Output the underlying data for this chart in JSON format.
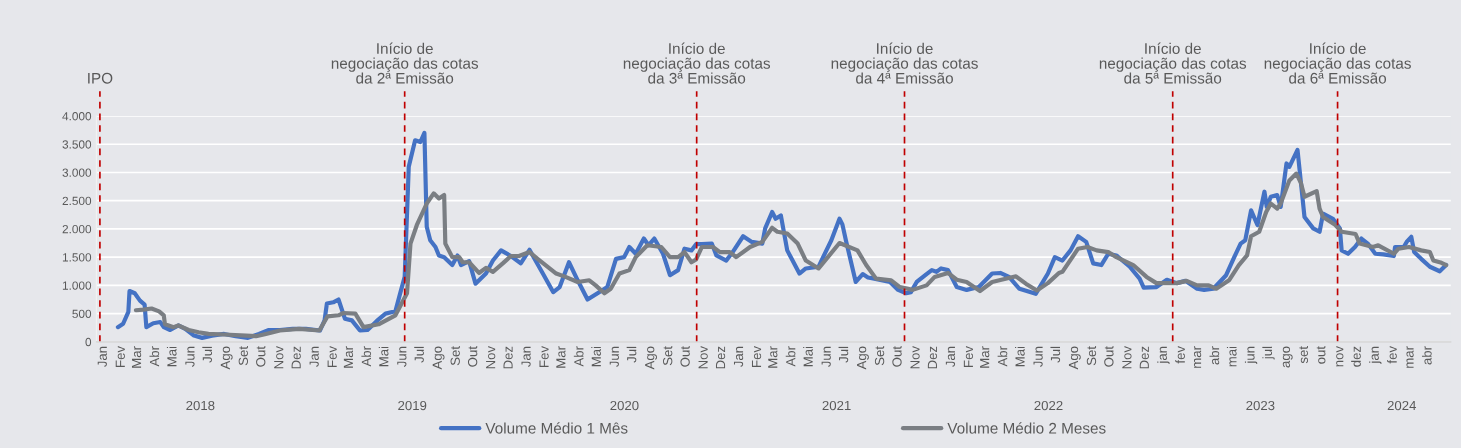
{
  "chart_data": {
    "type": "line",
    "yticks": [
      0,
      {
        "value": 500,
        "label": "500"
      },
      {
        "value": 1000,
        "label": "1.000"
      },
      {
        "value": 1500,
        "label": "1.500"
      },
      {
        "value": 2000,
        "label": "2.000"
      },
      {
        "value": 2500,
        "label": "2.500"
      },
      {
        "value": 3000,
        "label": "3.000"
      },
      {
        "value": 3500,
        "label": "3.500"
      },
      {
        "value": 4000,
        "label": "4.000"
      }
    ],
    "ylim": [
      0,
      4000
    ],
    "xlim": [
      "2017-12-20",
      "2024-05-10"
    ],
    "xticks": [
      {
        "value": "2018-01-01",
        "label": "Jan"
      },
      {
        "value": "2018-02-01",
        "label": "Fev"
      },
      {
        "value": "2018-03-01",
        "label": "Mar"
      },
      {
        "value": "2018-04-01",
        "label": "Abr"
      },
      {
        "value": "2018-05-01",
        "label": "Mai"
      },
      {
        "value": "2018-06-01",
        "label": "Jun"
      },
      {
        "value": "2018-07-01",
        "label": "Jul"
      },
      {
        "value": "2018-08-01",
        "label": "Ago"
      },
      {
        "value": "2018-09-01",
        "label": "Set"
      },
      {
        "value": "2018-10-01",
        "label": "Out"
      },
      {
        "value": "2018-11-01",
        "label": "Nov"
      },
      {
        "value": "2018-12-01",
        "label": "Dez"
      },
      {
        "value": "2019-01-01",
        "label": "Jan"
      },
      {
        "value": "2019-02-01",
        "label": "Fev"
      },
      {
        "value": "2019-03-01",
        "label": "Mar"
      },
      {
        "value": "2019-04-01",
        "label": "Abr"
      },
      {
        "value": "2019-05-01",
        "label": "Mai"
      },
      {
        "value": "2019-06-01",
        "label": "Jun"
      },
      {
        "value": "2019-07-01",
        "label": "Jul"
      },
      {
        "value": "2019-08-01",
        "label": "Ago"
      },
      {
        "value": "2019-09-01",
        "label": "Set"
      },
      {
        "value": "2019-10-01",
        "label": "Out"
      },
      {
        "value": "2019-11-01",
        "label": "Nov"
      },
      {
        "value": "2019-12-01",
        "label": "Dez"
      },
      {
        "value": "2020-01-01",
        "label": "Jan"
      },
      {
        "value": "2020-02-01",
        "label": "Fev"
      },
      {
        "value": "2020-03-01",
        "label": "Mar"
      },
      {
        "value": "2020-04-01",
        "label": "Abr"
      },
      {
        "value": "2020-05-01",
        "label": "Mai"
      },
      {
        "value": "2020-06-01",
        "label": "Jun"
      },
      {
        "value": "2020-07-01",
        "label": "Jul"
      },
      {
        "value": "2020-08-01",
        "label": "Ago"
      },
      {
        "value": "2020-09-01",
        "label": "Set"
      },
      {
        "value": "2020-10-01",
        "label": "Out"
      },
      {
        "value": "2020-11-01",
        "label": "Nov"
      },
      {
        "value": "2020-12-01",
        "label": "Dez"
      },
      {
        "value": "2021-01-01",
        "label": "Jan"
      },
      {
        "value": "2021-02-01",
        "label": "Fev"
      },
      {
        "value": "2021-03-01",
        "label": "Mar"
      },
      {
        "value": "2021-04-01",
        "label": "Abr"
      },
      {
        "value": "2021-05-01",
        "label": "Mai"
      },
      {
        "value": "2021-06-01",
        "label": "Jun"
      },
      {
        "value": "2021-07-01",
        "label": "Jul"
      },
      {
        "value": "2021-08-01",
        "label": "Ago"
      },
      {
        "value": "2021-09-01",
        "label": "Set"
      },
      {
        "value": "2021-10-01",
        "label": "Out"
      },
      {
        "value": "2021-11-01",
        "label": "Nov"
      },
      {
        "value": "2021-12-01",
        "label": "Dez"
      },
      {
        "value": "2022-01-01",
        "label": "Jan"
      },
      {
        "value": "2022-02-01",
        "label": "Fev"
      },
      {
        "value": "2022-03-01",
        "label": "Mar"
      },
      {
        "value": "2022-04-01",
        "label": "Abr"
      },
      {
        "value": "2022-05-01",
        "label": "Mai"
      },
      {
        "value": "2022-06-01",
        "label": "Jun"
      },
      {
        "value": "2022-07-01",
        "label": "Jul"
      },
      {
        "value": "2022-08-01",
        "label": "Ago"
      },
      {
        "value": "2022-09-01",
        "label": "Set"
      },
      {
        "value": "2022-10-01",
        "label": "Out"
      },
      {
        "value": "2022-11-01",
        "label": "Nov"
      },
      {
        "value": "2022-12-01",
        "label": "Dez"
      },
      {
        "value": "2023-01-01",
        "label": "jan"
      },
      {
        "value": "2023-02-01",
        "label": "fev"
      },
      {
        "value": "2023-03-01",
        "label": "mar"
      },
      {
        "value": "2023-04-01",
        "label": "abr"
      },
      {
        "value": "2023-05-01",
        "label": "mai"
      },
      {
        "value": "2023-06-01",
        "label": "jun"
      },
      {
        "value": "2023-07-01",
        "label": "jul"
      },
      {
        "value": "2023-08-01",
        "label": "ago"
      },
      {
        "value": "2023-09-01",
        "label": "set"
      },
      {
        "value": "2023-10-01",
        "label": "out"
      },
      {
        "value": "2023-11-01",
        "label": "nov"
      },
      {
        "value": "2023-12-01",
        "label": "dez"
      },
      {
        "value": "2024-01-01",
        "label": "jan"
      },
      {
        "value": "2024-02-01",
        "label": "fev"
      },
      {
        "value": "2024-03-01",
        "label": "mar"
      },
      {
        "value": "2024-04-01",
        "label": "abr"
      }
    ],
    "annotations": [
      "2018",
      "2019",
      "2020",
      "2021",
      "2022",
      "2023",
      "2024"
    ],
    "grid": "y",
    "legend": "bottom",
    "ref_lines": [
      {
        "axis": "x",
        "value": "2017-12-26",
        "label": "IPO",
        "color": "#c00000",
        "line_style": "dashed"
      },
      {
        "axis": "x",
        "value": "2019-06-04",
        "label": "Início de\nnegociação das cotas\nda 2ª Emissão",
        "color": "#c00000",
        "line_style": "dashed"
      },
      {
        "axis": "x",
        "value": "2020-10-19",
        "label": "Início de\nnegociação das cotas\nda 3ª Emissão",
        "color": "#c00000",
        "line_style": "dashed"
      },
      {
        "axis": "x",
        "value": "2021-10-12",
        "label": "Início de\nnegociação das cotas\nda 4ª Emissão",
        "color": "#c00000",
        "line_style": "dashed"
      },
      {
        "axis": "x",
        "value": "2023-01-17",
        "label": "Início de\nnegociação das cotas\nda 5ª Emissão",
        "color": "#c00000",
        "line_style": "dashed"
      },
      {
        "axis": "x",
        "value": "2023-10-28",
        "label": "Início de\nnegociação das cotas\nda 6ª Emissão",
        "color": "#c00000",
        "line_style": "dashed"
      }
    ],
    "series": [
      {
        "name": "Volume Médio 1 Mês",
        "color": "#4472c4",
        "x": [
          "2018-01-26",
          "2018-02-04",
          "2018-02-13",
          "2018-02-15",
          "2018-02-24",
          "2018-03-05",
          "2018-03-13",
          "2018-03-16",
          "2018-03-28",
          "2018-04-09",
          "2018-04-15",
          "2018-04-26",
          "2018-05-10",
          "2018-05-22",
          "2018-06-06",
          "2018-06-20",
          "2018-07-07",
          "2018-07-28",
          "2018-08-17",
          "2018-09-07",
          "2018-09-26",
          "2018-10-13",
          "2018-11-01",
          "2018-11-23",
          "2018-12-16",
          "2019-01-09",
          "2019-01-17",
          "2019-01-21",
          "2019-02-01",
          "2019-02-10",
          "2019-02-21",
          "2019-03-05",
          "2019-03-19",
          "2019-04-01",
          "2019-04-17",
          "2019-05-02",
          "2019-05-19",
          "2019-05-27",
          "2019-06-04",
          "2019-06-11",
          "2019-06-22",
          "2019-07-01",
          "2019-07-08",
          "2019-07-12",
          "2019-07-18",
          "2019-07-27",
          "2019-08-02",
          "2019-08-11",
          "2019-08-25",
          "2019-09-03",
          "2019-09-09",
          "2019-09-23",
          "2019-10-04",
          "2019-10-22",
          "2019-11-03",
          "2019-11-17",
          "2019-12-04",
          "2019-12-21",
          "2020-01-05",
          "2020-01-28",
          "2020-02-15",
          "2020-02-26",
          "2020-03-13",
          "2020-03-28",
          "2020-04-14",
          "2020-05-04",
          "2020-05-18",
          "2020-06-02",
          "2020-06-16",
          "2020-06-25",
          "2020-07-06",
          "2020-07-20",
          "2020-07-28",
          "2020-08-07",
          "2020-08-22",
          "2020-09-03",
          "2020-09-17",
          "2020-09-28",
          "2020-10-10",
          "2020-10-18",
          "2020-10-28",
          "2020-11-14",
          "2020-11-22",
          "2020-12-09",
          "2020-12-20",
          "2021-01-07",
          "2021-01-22",
          "2021-02-09",
          "2021-02-14",
          "2021-02-26",
          "2021-03-04",
          "2021-03-13",
          "2021-03-24",
          "2021-04-14",
          "2021-04-25",
          "2021-05-17",
          "2021-05-29",
          "2021-06-08",
          "2021-06-22",
          "2021-06-27",
          "2021-07-03",
          "2021-07-20",
          "2021-08-01",
          "2021-08-10",
          "2021-08-21",
          "2021-09-17",
          "2021-10-01",
          "2021-10-15",
          "2021-10-23",
          "2021-11-02",
          "2021-11-19",
          "2021-11-28",
          "2021-12-06",
          "2021-12-14",
          "2021-12-26",
          "2022-01-10",
          "2022-01-27",
          "2022-02-17",
          "2022-03-12",
          "2022-03-26",
          "2022-04-10",
          "2022-04-28",
          "2022-05-26",
          "2022-06-16",
          "2022-06-28",
          "2022-07-11",
          "2022-07-25",
          "2022-08-07",
          "2022-08-21",
          "2022-09-02",
          "2022-09-16",
          "2022-09-28",
          "2022-10-12",
          "2022-11-04",
          "2022-11-21",
          "2022-11-28",
          "2022-12-20",
          "2023-01-07",
          "2023-01-24",
          "2023-02-08",
          "2023-02-28",
          "2023-03-12",
          "2023-03-28",
          "2023-04-19",
          "2023-05-03",
          "2023-05-14",
          "2023-05-22",
          "2023-06-01",
          "2023-06-12",
          "2023-06-24",
          "2023-06-28",
          "2023-07-05",
          "2023-07-16",
          "2023-07-22",
          "2023-08-01",
          "2023-08-06",
          "2023-08-20",
          "2023-09-01",
          "2023-09-16",
          "2023-09-27",
          "2023-10-03",
          "2023-10-20",
          "2023-11-01",
          "2023-11-04",
          "2023-11-15",
          "2023-11-27",
          "2023-12-08",
          "2023-12-19",
          "2024-01-01",
          "2024-01-15",
          "2024-02-02",
          "2024-02-04",
          "2024-02-19",
          "2024-02-24",
          "2024-03-03",
          "2024-03-08",
          "2024-03-20",
          "2024-04-04",
          "2024-04-21",
          "2024-05-02"
        ],
        "values": [
          260,
          320,
          530,
          900,
          860,
          730,
          660,
          260,
          330,
          350,
          260,
          210,
          290,
          230,
          110,
          70,
          110,
          140,
          100,
          70,
          140,
          210,
          210,
          230,
          230,
          200,
          380,
          680,
          700,
          750,
          410,
          380,
          200,
          210,
          370,
          500,
          540,
          850,
          1150,
          3100,
          3570,
          3540,
          3700,
          2040,
          1800,
          1680,
          1530,
          1500,
          1360,
          1530,
          1360,
          1430,
          1030,
          1210,
          1440,
          1620,
          1520,
          1390,
          1630,
          1210,
          880,
          970,
          1410,
          1090,
          750,
          880,
          970,
          1470,
          1500,
          1680,
          1560,
          1830,
          1710,
          1830,
          1560,
          1180,
          1270,
          1650,
          1620,
          1730,
          1730,
          1740,
          1530,
          1440,
          1590,
          1870,
          1770,
          1740,
          2010,
          2300,
          2180,
          2240,
          1620,
          1210,
          1300,
          1330,
          1590,
          1800,
          2180,
          2080,
          1800,
          1060,
          1200,
          1140,
          1120,
          1060,
          920,
          860,
          880,
          1060,
          1200,
          1270,
          1240,
          1300,
          1270,
          970,
          920,
          970,
          1210,
          1220,
          1150,
          940,
          850,
          1210,
          1500,
          1440,
          1620,
          1870,
          1770,
          1390,
          1360,
          1560,
          1530,
          1330,
          1120,
          960,
          970,
          1100,
          1040,
          1080,
          940,
          920,
          940,
          1180,
          1500,
          1740,
          1800,
          2330,
          2070,
          2660,
          2390,
          2570,
          2600,
          2390,
          3160,
          3100,
          3400,
          2210,
          2010,
          1950,
          2270,
          2180,
          2010,
          1620,
          1560,
          1680,
          1830,
          1740,
          1560,
          1550,
          1520,
          1680,
          1680,
          1770,
          1860,
          1590,
          1470,
          1330,
          1250,
          1360
        ]
      },
      {
        "name": "Volume Médio 2 Meses",
        "color": "#7a7e83",
        "x": [
          "2018-02-26",
          "2018-03-11",
          "2018-03-25",
          "2018-04-07",
          "2018-04-15",
          "2018-04-17",
          "2018-05-02",
          "2018-05-10",
          "2018-05-28",
          "2018-06-14",
          "2018-07-01",
          "2018-07-28",
          "2018-09-04",
          "2018-09-21",
          "2018-10-08",
          "2018-11-01",
          "2018-12-04",
          "2019-01-08",
          "2019-01-22",
          "2019-02-10",
          "2019-02-18",
          "2019-03-11",
          "2019-03-25",
          "2019-04-20",
          "2019-05-19",
          "2019-06-08",
          "2019-06-14",
          "2019-06-25",
          "2019-07-12",
          "2019-07-24",
          "2019-08-02",
          "2019-08-11",
          "2019-08-13",
          "2019-08-25",
          "2019-09-06",
          "2019-09-12",
          "2019-09-23",
          "2019-10-10",
          "2019-10-22",
          "2019-11-03",
          "2019-11-20",
          "2019-12-04",
          "2019-12-18",
          "2020-01-05",
          "2020-01-19",
          "2020-02-20",
          "2020-03-07",
          "2020-03-28",
          "2020-04-17",
          "2020-04-28",
          "2020-05-13",
          "2020-05-24",
          "2020-06-08",
          "2020-06-25",
          "2020-07-06",
          "2020-07-26",
          "2020-08-19",
          "2020-09-03",
          "2020-09-17",
          "2020-09-28",
          "2020-10-10",
          "2020-10-18",
          "2020-10-28",
          "2020-11-16",
          "2020-11-28",
          "2020-12-15",
          "2020-12-26",
          "2021-01-19",
          "2021-02-09",
          "2021-02-26",
          "2021-03-07",
          "2021-03-24",
          "2021-04-11",
          "2021-04-25",
          "2021-05-17",
          "2021-06-22",
          "2021-07-23",
          "2021-08-07",
          "2021-08-24",
          "2021-09-19",
          "2021-10-04",
          "2021-10-26",
          "2021-11-19",
          "2021-12-03",
          "2021-12-26",
          "2022-01-10",
          "2022-01-27",
          "2022-02-19",
          "2022-03-12",
          "2022-03-28",
          "2022-04-22",
          "2022-05-09",
          "2022-05-28",
          "2022-06-16",
          "2022-07-05",
          "2022-07-11",
          "2022-08-07",
          "2022-08-23",
          "2022-09-08",
          "2022-09-28",
          "2022-10-12",
          "2022-11-10",
          "2022-12-03",
          "2022-12-20",
          "2023-01-24",
          "2023-02-10",
          "2023-02-28",
          "2023-03-20",
          "2023-04-02",
          "2023-04-24",
          "2023-05-11",
          "2023-05-25",
          "2023-06-01",
          "2023-06-15",
          "2023-06-27",
          "2023-07-05",
          "2023-07-16",
          "2023-07-22",
          "2023-08-06",
          "2023-08-18",
          "2023-08-26",
          "2023-09-01",
          "2023-09-22",
          "2023-09-27",
          "2023-10-03",
          "2023-10-23",
          "2023-11-04",
          "2023-11-28",
          "2023-12-05",
          "2023-12-28",
          "2024-01-06",
          "2024-02-02",
          "2024-02-10",
          "2024-02-28",
          "2024-03-20",
          "2024-04-04",
          "2024-04-10",
          "2024-04-24",
          "2024-05-02"
        ],
        "values": [
          560,
          570,
          590,
          540,
          470,
          310,
          260,
          290,
          210,
          170,
          140,
          130,
          110,
          100,
          140,
          200,
          230,
          200,
          450,
          470,
          510,
          500,
          260,
          310,
          470,
          860,
          1740,
          2070,
          2450,
          2630,
          2540,
          2600,
          1740,
          1500,
          1500,
          1410,
          1410,
          1220,
          1310,
          1240,
          1390,
          1520,
          1520,
          1590,
          1470,
          1210,
          1150,
          1060,
          1090,
          1000,
          860,
          940,
          1210,
          1270,
          1500,
          1710,
          1680,
          1500,
          1500,
          1590,
          1410,
          1460,
          1680,
          1680,
          1590,
          1590,
          1500,
          1680,
          1770,
          2020,
          1950,
          1920,
          1740,
          1440,
          1300,
          1750,
          1620,
          1360,
          1120,
          1090,
          970,
          920,
          1000,
          1150,
          1220,
          1100,
          1060,
          900,
          1060,
          1100,
          1160,
          1030,
          910,
          1040,
          1220,
          1240,
          1650,
          1680,
          1620,
          1590,
          1500,
          1360,
          1150,
          1040,
          1040,
          1080,
          1000,
          1000,
          940,
          1090,
          1360,
          1530,
          1870,
          1950,
          2300,
          2450,
          2360,
          2450,
          2860,
          2980,
          2810,
          2570,
          2670,
          2360,
          2210,
          2080,
          1950,
          1910,
          1740,
          1680,
          1710,
          1560,
          1650,
          1680,
          1620,
          1590,
          1440,
          1400,
          1360
        ]
      }
    ]
  }
}
